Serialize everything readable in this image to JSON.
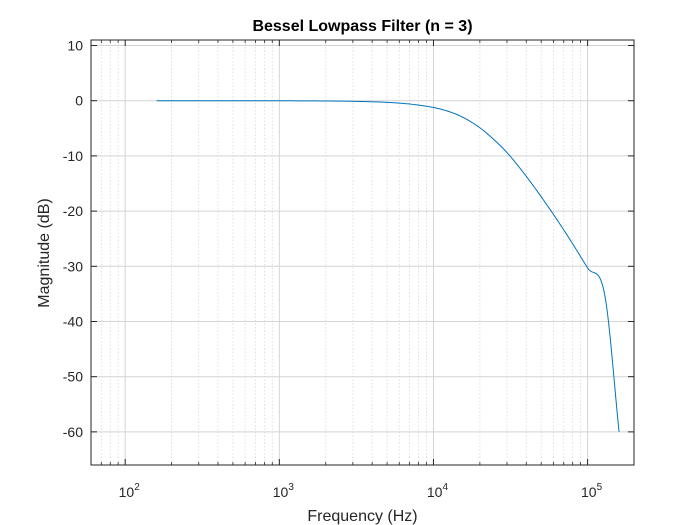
{
  "chart_data": {
    "type": "line",
    "title": "Bessel Lowpass Filter (n = 3)",
    "xlabel": "Frequency (Hz)",
    "ylabel": "Magnitude (dB)",
    "xscale": "log",
    "xlim": [
      60,
      200000
    ],
    "ylim": [
      -66,
      11
    ],
    "grid": true,
    "minor_grid": true,
    "x_ticks": [
      {
        "value": 100,
        "base": "10",
        "exp": "2"
      },
      {
        "value": 1000,
        "base": "10",
        "exp": "3"
      },
      {
        "value": 10000,
        "base": "10",
        "exp": "4"
      },
      {
        "value": 100000,
        "base": "10",
        "exp": "5"
      }
    ],
    "y_ticks": [
      10,
      0,
      -10,
      -20,
      -30,
      -40,
      -50,
      -60
    ],
    "y_tick_labels": [
      "10",
      "0",
      "-10",
      "-20",
      "-30",
      "-40",
      "-50",
      "-60"
    ],
    "series": [
      {
        "color": "#0072BD",
        "x": [
          160,
          300,
          600,
          1000,
          2000,
          3000,
          5000,
          7000,
          10000,
          12000,
          15000,
          20000,
          25000,
          30000,
          40000,
          50000,
          70000,
          100000,
          130000,
          160000
        ],
        "y": [
          0,
          0,
          0,
          -0.01,
          -0.05,
          -0.11,
          -0.3,
          -0.6,
          -1.23,
          -1.78,
          -2.8,
          -4.9,
          -7.2,
          -9.4,
          -13.7,
          -17.4,
          -23.4,
          -30.3,
          -35.6,
          -60
        ]
      }
    ]
  }
}
